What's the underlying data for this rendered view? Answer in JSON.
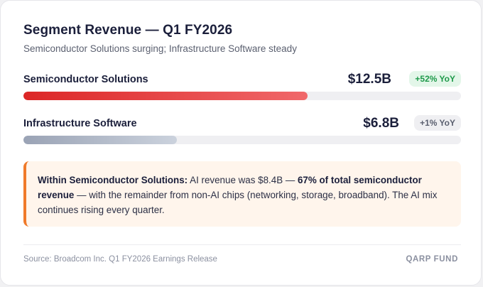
{
  "header": {
    "title": "Segment Revenue — Q1 FY2026",
    "subtitle": "Semiconductor Solutions surging; Infrastructure Software steady"
  },
  "segments": [
    {
      "name": "Semiconductor Solutions",
      "value": "$12.5B",
      "change": "+52% YoY",
      "bar_fraction": 0.65,
      "trend": "up",
      "color": "#dc2626"
    },
    {
      "name": "Infrastructure Software",
      "value": "$6.8B",
      "change": "+1% YoY",
      "bar_fraction": 0.35,
      "trend": "flat",
      "color": "#9aa3b5"
    }
  ],
  "callout": {
    "lead": "Within Semiconductor Solutions:",
    "text1": " AI revenue was $8.4B — ",
    "emphasis": "67% of total semiconductor revenue",
    "text2": " — with the remainder from non-AI chips (networking, storage, broadband). The AI mix continues rising every quarter.",
    "accent_color": "#f07a2a"
  },
  "footer": {
    "source": "Source: Broadcom Inc. Q1 FY2026 Earnings Release",
    "brand": "QARP FUND"
  }
}
